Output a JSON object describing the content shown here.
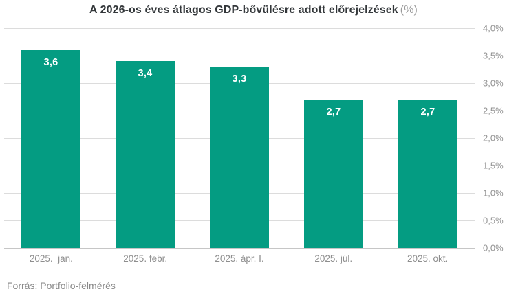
{
  "title": {
    "main": "A 2026-os éves átlagos GDP-bővülésre adott előrejelzések",
    "unit": "(%)"
  },
  "source": "Forrás: Portfolio-felmérés",
  "chart_data": {
    "type": "bar",
    "title": "A 2026-os éves átlagos GDP-bővülésre adott előrejelzések (%)",
    "categories": [
      "2025.  jan.",
      "2025. febr.",
      "2025. ápr. I.",
      "2025. júl.",
      "2025. okt."
    ],
    "values": [
      3.6,
      3.4,
      3.3,
      2.7,
      2.7
    ],
    "value_labels": [
      "3,6",
      "3,4",
      "3,3",
      "2,7",
      "2,7"
    ],
    "xlabel": "",
    "ylabel": "",
    "ylim": [
      0,
      4
    ],
    "y_tick_step": 0.5,
    "y_tick_labels_top_to_bottom": [
      "4,0%",
      "3,5%",
      "3,0%",
      "2,5%",
      "2,0%",
      "1,5%",
      "1,0%",
      "0,5%",
      "0,0%"
    ],
    "y_axis_position": "right",
    "grid": true,
    "legend": false,
    "bar_color": "#049c82",
    "value_label_color": "#ffffff",
    "source": "Forrás: Portfolio-felmérés"
  }
}
